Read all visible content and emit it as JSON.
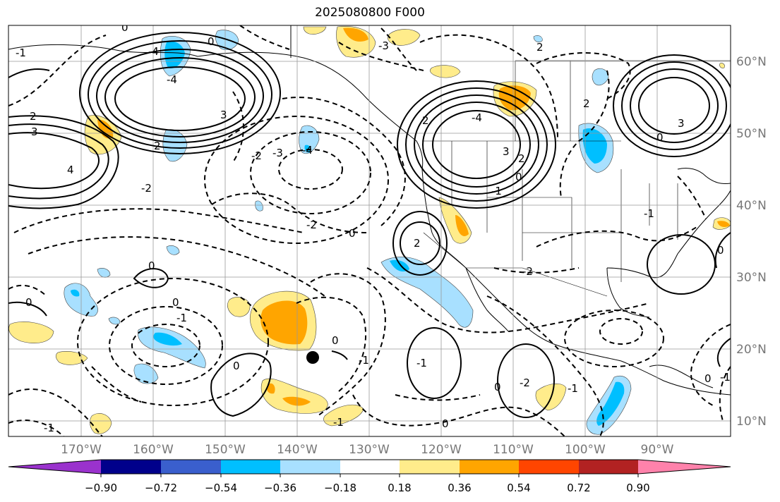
{
  "title": "2025080800 F000",
  "map": {
    "lon_labels": [
      "170°W",
      "160°W",
      "150°W",
      "140°W",
      "130°W",
      "120°W",
      "110°W",
      "100°W",
      "90°W"
    ],
    "lat_labels": [
      "60°N",
      "50°N",
      "40°N",
      "30°N",
      "20°N",
      "10°N"
    ],
    "contour_labels": [
      "0",
      "-1",
      "-2",
      "2",
      "3",
      "4",
      "-3",
      "-4"
    ],
    "marker": {
      "lon": -137.9,
      "lat": 18.9
    }
  },
  "colorbar": {
    "ticks": [
      "−0.90",
      "−0.72",
      "−0.54",
      "−0.36",
      "−0.18",
      "0.18",
      "0.36",
      "0.54",
      "0.72",
      "0.90"
    ],
    "colors": {
      "under": "#9a32cd",
      "b1": "#00008b",
      "b2": "#3a5fcd",
      "b3": "#00bfff",
      "b4": "#a8e0ff",
      "b5": "#ffffff",
      "b6": "#ffec8b",
      "b7": "#ffa500",
      "b8": "#ff4500",
      "b9": "#b22222",
      "over": "#ff82ab"
    }
  }
}
